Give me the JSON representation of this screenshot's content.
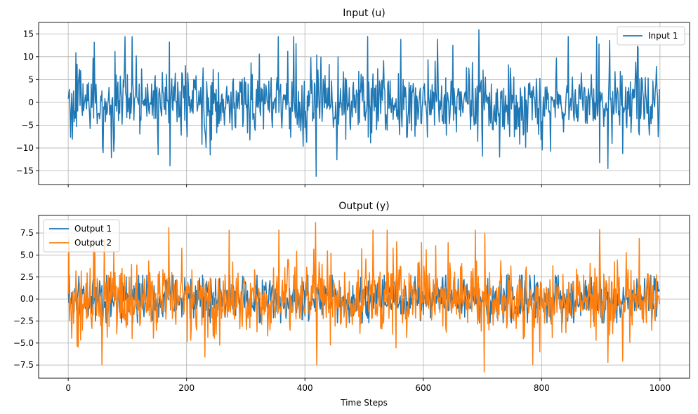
{
  "chart_data": [
    {
      "type": "line",
      "title": "Input (u)",
      "xlabel": "",
      "ylabel": "",
      "xlim": [
        -50,
        1050
      ],
      "ylim": [
        -18,
        17.5
      ],
      "xticks": [
        0,
        200,
        400,
        600,
        800,
        1000
      ],
      "xtick_labels_visible": false,
      "yticks": [
        -15,
        -10,
        -5,
        0,
        5,
        10,
        15
      ],
      "ytick_labels": [
        "−15",
        "−10",
        "−5",
        "0",
        "5",
        "10",
        "15"
      ],
      "grid": true,
      "legend_position": "upper right",
      "n_points": 1000,
      "series": [
        {
          "name": "Input 1",
          "color": "#1f77b4",
          "stats": {
            "std": 3.6,
            "min": -16.2,
            "max": 16.0
          },
          "notable_points": [
            [
              13,
              10.9
            ],
            [
              73,
              -12.1
            ],
            [
              171,
              13.2
            ],
            [
              172,
              -13.9
            ],
            [
              240,
              -11.5
            ],
            [
              419,
              -16.2
            ],
            [
              420,
              10.4
            ],
            [
              562,
              13.8
            ],
            [
              650,
              12.5
            ],
            [
              694,
              15.9
            ],
            [
              700,
              -11.8
            ],
            [
              897,
              12.8
            ],
            [
              898,
              -13.2
            ],
            [
              912,
              -14.5
            ],
            [
              962,
              12.3
            ]
          ]
        }
      ]
    },
    {
      "type": "line",
      "title": "Output (y)",
      "xlabel": "Time Steps",
      "ylabel": "",
      "xlim": [
        -50,
        1050
      ],
      "ylim": [
        -9.0,
        9.5
      ],
      "xticks": [
        0,
        200,
        400,
        600,
        800,
        1000
      ],
      "xtick_labels": [
        "0",
        "200",
        "400",
        "600",
        "800",
        "1000"
      ],
      "yticks": [
        -7.5,
        -5.0,
        -2.5,
        0.0,
        2.5,
        5.0,
        7.5
      ],
      "ytick_labels": [
        "−7.5",
        "−5.0",
        "−2.5",
        "0.0",
        "2.5",
        "5.0",
        "7.5"
      ],
      "grid": true,
      "legend_position": "upper left",
      "n_points": 1000,
      "series": [
        {
          "name": "Output 1",
          "color": "#1f77b4",
          "stats": {
            "std": 1.2,
            "min": -3.0,
            "max": 3.0
          },
          "notable_points": []
        },
        {
          "name": "Output 2",
          "color": "#ff7f0e",
          "stats": {
            "std": 2.0,
            "min": -8.3,
            "max": 8.7
          },
          "notable_points": [
            [
              15,
              -5.4
            ],
            [
              170,
              8.1
            ],
            [
              231,
              -6.6
            ],
            [
              418,
              8.7
            ],
            [
              420,
              -7.5
            ],
            [
              555,
              6.5
            ],
            [
              605,
              5.6
            ],
            [
              703,
              -8.3
            ],
            [
              704,
              7.5
            ],
            [
              898,
              7.9
            ],
            [
              912,
              -7.2
            ]
          ]
        }
      ]
    }
  ]
}
